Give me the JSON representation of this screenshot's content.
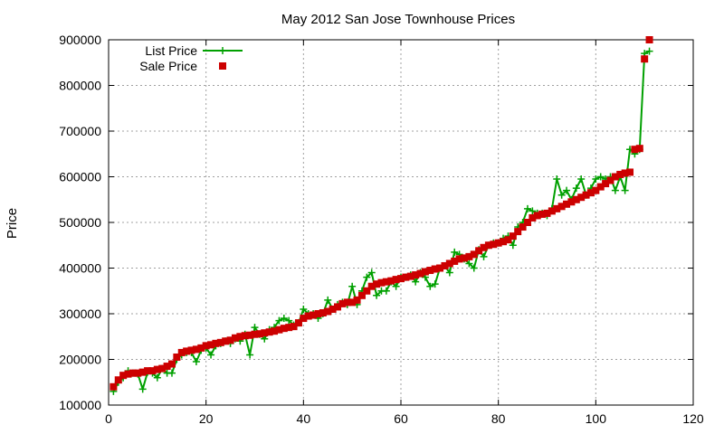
{
  "chart_data": {
    "type": "line",
    "title": "May 2012 San Jose Townhouse Prices",
    "xlabel": "",
    "ylabel": "Price",
    "xlim": [
      0,
      120
    ],
    "ylim": [
      100000,
      900000
    ],
    "x_ticks": [
      0,
      20,
      40,
      60,
      80,
      100,
      120
    ],
    "y_ticks": [
      100000,
      200000,
      300000,
      400000,
      500000,
      600000,
      700000,
      800000,
      900000
    ],
    "grid": true,
    "legend_position": "top-left",
    "series": [
      {
        "name": "List Price",
        "color": "#00a000",
        "marker": "plus",
        "x": [
          1,
          2,
          3,
          4,
          5,
          6,
          7,
          8,
          9,
          10,
          11,
          12,
          13,
          14,
          15,
          16,
          17,
          18,
          19,
          20,
          21,
          22,
          23,
          24,
          25,
          26,
          27,
          28,
          29,
          30,
          31,
          32,
          33,
          34,
          35,
          36,
          37,
          38,
          39,
          40,
          41,
          42,
          43,
          44,
          45,
          46,
          47,
          48,
          49,
          50,
          51,
          52,
          53,
          54,
          55,
          56,
          57,
          58,
          59,
          60,
          61,
          62,
          63,
          64,
          65,
          66,
          67,
          68,
          69,
          70,
          71,
          72,
          73,
          74,
          75,
          76,
          77,
          78,
          79,
          80,
          81,
          82,
          83,
          84,
          85,
          86,
          87,
          88,
          89,
          90,
          91,
          92,
          93,
          94,
          95,
          96,
          97,
          98,
          99,
          100,
          101,
          102,
          103,
          104,
          105,
          106,
          107,
          108,
          109,
          110,
          111
        ],
        "y": [
          130000,
          150000,
          160000,
          175000,
          170000,
          168000,
          135000,
          172000,
          170000,
          160000,
          180000,
          170000,
          170000,
          200000,
          210000,
          215000,
          215000,
          195000,
          220000,
          225000,
          210000,
          230000,
          235000,
          240000,
          235000,
          245000,
          240000,
          255000,
          210000,
          270000,
          255000,
          245000,
          265000,
          270000,
          285000,
          290000,
          285000,
          275000,
          280000,
          310000,
          300000,
          300000,
          290000,
          300000,
          330000,
          310000,
          320000,
          325000,
          320000,
          360000,
          320000,
          350000,
          380000,
          390000,
          340000,
          350000,
          350000,
          370000,
          360000,
          380000,
          380000,
          385000,
          370000,
          390000,
          380000,
          360000,
          365000,
          400000,
          405000,
          390000,
          435000,
          430000,
          420000,
          410000,
          400000,
          440000,
          425000,
          450000,
          455000,
          455000,
          465000,
          470000,
          450000,
          490000,
          500000,
          530000,
          525000,
          520000,
          520000,
          515000,
          530000,
          595000,
          560000,
          570000,
          550000,
          575000,
          595000,
          560000,
          575000,
          595000,
          600000,
          595000,
          600000,
          570000,
          600000,
          570000,
          660000,
          650000,
          660000,
          870000,
          875000
        ]
      },
      {
        "name": "Sale Price",
        "color": "#cc0000",
        "marker": "square",
        "x": [
          1,
          2,
          3,
          4,
          5,
          6,
          7,
          8,
          9,
          10,
          11,
          12,
          13,
          14,
          15,
          16,
          17,
          18,
          19,
          20,
          21,
          22,
          23,
          24,
          25,
          26,
          27,
          28,
          29,
          30,
          31,
          32,
          33,
          34,
          35,
          36,
          37,
          38,
          39,
          40,
          41,
          42,
          43,
          44,
          45,
          46,
          47,
          48,
          49,
          50,
          51,
          52,
          53,
          54,
          55,
          56,
          57,
          58,
          59,
          60,
          61,
          62,
          63,
          64,
          65,
          66,
          67,
          68,
          69,
          70,
          71,
          72,
          73,
          74,
          75,
          76,
          77,
          78,
          79,
          80,
          81,
          82,
          83,
          84,
          85,
          86,
          87,
          88,
          89,
          90,
          91,
          92,
          93,
          94,
          95,
          96,
          97,
          98,
          99,
          100,
          101,
          102,
          103,
          104,
          105,
          106,
          107,
          108,
          109,
          110,
          111
        ],
        "y": [
          140000,
          155000,
          165000,
          168000,
          170000,
          170000,
          172000,
          175000,
          175000,
          178000,
          180000,
          185000,
          190000,
          205000,
          215000,
          218000,
          220000,
          222000,
          225000,
          230000,
          232000,
          235000,
          237000,
          240000,
          242000,
          247000,
          250000,
          252000,
          253000,
          255000,
          256000,
          258000,
          260000,
          262000,
          265000,
          268000,
          270000,
          272000,
          280000,
          290000,
          295000,
          297000,
          300000,
          302000,
          305000,
          310000,
          315000,
          322000,
          325000,
          325000,
          330000,
          340000,
          350000,
          360000,
          365000,
          368000,
          370000,
          372000,
          375000,
          377000,
          380000,
          382000,
          385000,
          388000,
          392000,
          395000,
          398000,
          400000,
          405000,
          410000,
          415000,
          420000,
          422000,
          425000,
          430000,
          438000,
          445000,
          450000,
          452000,
          455000,
          458000,
          462000,
          470000,
          480000,
          490000,
          500000,
          510000,
          515000,
          518000,
          520000,
          525000,
          530000,
          535000,
          540000,
          545000,
          550000,
          555000,
          560000,
          565000,
          570000,
          578000,
          585000,
          592000,
          600000,
          605000,
          608000,
          610000,
          660000,
          662000,
          858000,
          900000
        ]
      }
    ]
  }
}
